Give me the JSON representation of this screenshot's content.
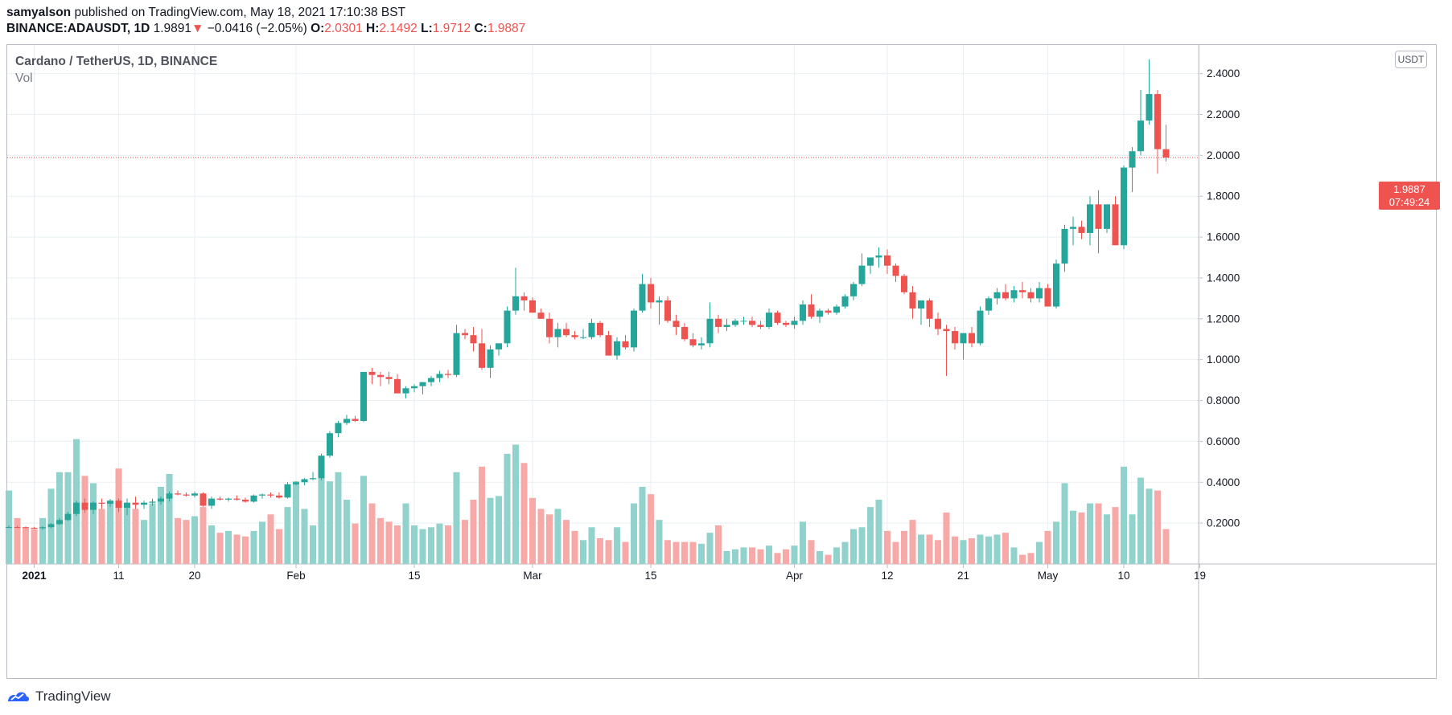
{
  "header": {
    "author": "samyalson",
    "published_text": "published on TradingView.com, May 18, 2021 17:10:38 BST",
    "symbol": "BINANCE:ADAUSDT, 1D",
    "last": "1.9891",
    "arrow": "▼",
    "change": "−0.0416 (−2.05%)",
    "o_label": "O:",
    "o_value": "2.0301",
    "h_label": "H:",
    "h_value": "2.1492",
    "l_label": "L:",
    "l_value": "1.9712",
    "c_label": "C:",
    "c_value": "1.9887"
  },
  "legend": {
    "title": "Cardano / TetherUS, 1D, BINANCE",
    "volume_label": "Vol"
  },
  "unit_badge": "USDT",
  "price_tag": {
    "price": "1.9887",
    "countdown": "07:49:24"
  },
  "footer": {
    "brand": "TradingView"
  },
  "colors": {
    "up": "#26a69a",
    "down": "#ef5350",
    "up_volume": "#92d2cc",
    "down_volume": "#f7a9a7",
    "grid": "#e9eff3"
  },
  "chart_data": {
    "type": "candlestick",
    "symbol": "BINANCE:ADAUSDT",
    "interval": "1D",
    "ylim": [
      0.0,
      2.54
    ],
    "y_ticks": [
      "2.4000",
      "2.2000",
      "2.0000",
      "1.8000",
      "1.6000",
      "1.4000",
      "1.2000",
      "1.0000",
      "0.8000",
      "0.6000",
      "0.4000",
      "0.2000"
    ],
    "y_tick_values": [
      2.4,
      2.2,
      2.0,
      1.8,
      1.6,
      1.4,
      1.2,
      1.0,
      0.8,
      0.6,
      0.4,
      0.2
    ],
    "x_ticks": [
      {
        "label": "2021",
        "index": 3,
        "bold": true
      },
      {
        "label": "11",
        "index": 13
      },
      {
        "label": "20",
        "index": 22
      },
      {
        "label": "Feb",
        "index": 34
      },
      {
        "label": "15",
        "index": 48
      },
      {
        "label": "Mar",
        "index": 62
      },
      {
        "label": "15",
        "index": 76
      },
      {
        "label": "Apr",
        "index": 93
      },
      {
        "label": "12",
        "index": 104
      },
      {
        "label": "21",
        "index": 113
      },
      {
        "label": "May",
        "index": 123
      },
      {
        "label": "10",
        "index": 132
      },
      {
        "label": "19",
        "index": 141
      }
    ],
    "candles": [
      [
        0.178,
        0.188,
        0.175,
        0.181,
        0.4
      ],
      [
        0.181,
        0.186,
        0.176,
        0.18,
        0.25
      ],
      [
        0.18,
        0.184,
        0.174,
        0.177,
        0.2
      ],
      [
        0.177,
        0.182,
        0.172,
        0.175,
        0.19
      ],
      [
        0.175,
        0.185,
        0.168,
        0.18,
        0.25
      ],
      [
        0.18,
        0.2,
        0.175,
        0.195,
        0.41
      ],
      [
        0.195,
        0.225,
        0.19,
        0.215,
        0.5
      ],
      [
        0.215,
        0.255,
        0.21,
        0.245,
        0.5
      ],
      [
        0.245,
        0.31,
        0.235,
        0.3,
        0.68
      ],
      [
        0.3,
        0.32,
        0.25,
        0.265,
        0.48
      ],
      [
        0.265,
        0.305,
        0.245,
        0.3,
        0.44
      ],
      [
        0.3,
        0.32,
        0.27,
        0.295,
        0.3
      ],
      [
        0.295,
        0.318,
        0.28,
        0.31,
        0.33
      ],
      [
        0.31,
        0.32,
        0.255,
        0.275,
        0.52
      ],
      [
        0.275,
        0.32,
        0.24,
        0.3,
        0.33
      ],
      [
        0.3,
        0.33,
        0.27,
        0.29,
        0.3
      ],
      [
        0.29,
        0.31,
        0.27,
        0.3,
        0.24
      ],
      [
        0.3,
        0.32,
        0.285,
        0.305,
        0.33
      ],
      [
        0.305,
        0.33,
        0.29,
        0.32,
        0.42
      ],
      [
        0.32,
        0.355,
        0.305,
        0.345,
        0.49
      ],
      [
        0.345,
        0.36,
        0.335,
        0.34,
        0.25
      ],
      [
        0.34,
        0.35,
        0.33,
        0.335,
        0.24
      ],
      [
        0.335,
        0.355,
        0.325,
        0.345,
        0.26
      ],
      [
        0.345,
        0.35,
        0.28,
        0.285,
        0.31
      ],
      [
        0.285,
        0.33,
        0.27,
        0.32,
        0.21
      ],
      [
        0.32,
        0.33,
        0.31,
        0.315,
        0.17
      ],
      [
        0.315,
        0.325,
        0.305,
        0.32,
        0.18
      ],
      [
        0.32,
        0.335,
        0.31,
        0.315,
        0.16
      ],
      [
        0.315,
        0.325,
        0.3,
        0.305,
        0.15
      ],
      [
        0.305,
        0.34,
        0.3,
        0.335,
        0.18
      ],
      [
        0.335,
        0.345,
        0.32,
        0.34,
        0.23
      ],
      [
        0.34,
        0.35,
        0.325,
        0.335,
        0.27
      ],
      [
        0.335,
        0.35,
        0.32,
        0.325,
        0.19
      ],
      [
        0.325,
        0.4,
        0.32,
        0.39,
        0.31
      ],
      [
        0.39,
        0.405,
        0.385,
        0.4,
        0.45
      ],
      [
        0.4,
        0.42,
        0.385,
        0.415,
        0.3
      ],
      [
        0.415,
        0.45,
        0.41,
        0.42,
        0.21
      ],
      [
        0.42,
        0.54,
        0.41,
        0.53,
        0.5
      ],
      [
        0.53,
        0.65,
        0.52,
        0.64,
        0.45
      ],
      [
        0.64,
        0.7,
        0.62,
        0.69,
        0.5
      ],
      [
        0.69,
        0.73,
        0.68,
        0.71,
        0.35
      ],
      [
        0.71,
        0.725,
        0.695,
        0.7,
        0.22
      ],
      [
        0.7,
        0.94,
        0.695,
        0.94,
        0.48
      ],
      [
        0.94,
        0.96,
        0.88,
        0.925,
        0.33
      ],
      [
        0.925,
        0.94,
        0.87,
        0.915,
        0.25
      ],
      [
        0.915,
        0.94,
        0.88,
        0.905,
        0.23
      ],
      [
        0.905,
        0.93,
        0.86,
        0.835,
        0.21
      ],
      [
        0.835,
        0.87,
        0.81,
        0.86,
        0.33
      ],
      [
        0.86,
        0.88,
        0.84,
        0.87,
        0.21
      ],
      [
        0.87,
        0.89,
        0.83,
        0.89,
        0.19
      ],
      [
        0.89,
        0.92,
        0.87,
        0.91,
        0.2
      ],
      [
        0.91,
        0.945,
        0.89,
        0.93,
        0.22
      ],
      [
        0.93,
        0.95,
        0.91,
        0.925,
        0.21
      ],
      [
        0.925,
        1.17,
        0.915,
        1.13,
        0.5
      ],
      [
        1.13,
        1.15,
        1.1,
        1.12,
        0.24
      ],
      [
        1.12,
        1.16,
        1.04,
        1.08,
        0.35
      ],
      [
        1.08,
        1.15,
        0.95,
        0.96,
        0.53
      ],
      [
        0.96,
        1.07,
        0.91,
        1.05,
        0.36
      ],
      [
        1.05,
        1.08,
        1.02,
        1.08,
        0.37
      ],
      [
        1.08,
        1.26,
        1.06,
        1.24,
        0.6
      ],
      [
        1.24,
        1.45,
        1.22,
        1.31,
        0.65
      ],
      [
        1.31,
        1.33,
        1.24,
        1.29,
        0.55
      ],
      [
        1.29,
        1.305,
        1.23,
        1.23,
        0.36
      ],
      [
        1.23,
        1.25,
        1.2,
        1.2,
        0.3
      ],
      [
        1.2,
        1.23,
        1.08,
        1.11,
        0.27
      ],
      [
        1.11,
        1.18,
        1.06,
        1.15,
        0.3
      ],
      [
        1.15,
        1.18,
        1.11,
        1.12,
        0.24
      ],
      [
        1.12,
        1.14,
        1.1,
        1.11,
        0.18
      ],
      [
        1.11,
        1.15,
        1.1,
        1.11,
        0.13
      ],
      [
        1.11,
        1.2,
        1.1,
        1.18,
        0.2
      ],
      [
        1.18,
        1.19,
        1.11,
        1.12,
        0.14
      ],
      [
        1.12,
        1.14,
        1.02,
        1.02,
        0.13
      ],
      [
        1.02,
        1.11,
        1.0,
        1.09,
        0.2
      ],
      [
        1.09,
        1.12,
        1.05,
        1.06,
        0.12
      ],
      [
        1.06,
        1.25,
        1.04,
        1.24,
        0.33
      ],
      [
        1.24,
        1.42,
        1.23,
        1.37,
        0.42
      ],
      [
        1.37,
        1.4,
        1.25,
        1.28,
        0.38
      ],
      [
        1.28,
        1.31,
        1.17,
        1.29,
        0.24
      ],
      [
        1.29,
        1.31,
        1.18,
        1.19,
        0.13
      ],
      [
        1.19,
        1.22,
        1.12,
        1.16,
        0.12
      ],
      [
        1.16,
        1.18,
        1.09,
        1.1,
        0.12
      ],
      [
        1.1,
        1.13,
        1.06,
        1.07,
        0.12
      ],
      [
        1.07,
        1.11,
        1.05,
        1.08,
        0.11
      ],
      [
        1.08,
        1.28,
        1.06,
        1.2,
        0.17
      ],
      [
        1.2,
        1.22,
        1.13,
        1.16,
        0.21
      ],
      [
        1.16,
        1.2,
        1.14,
        1.17,
        0.07
      ],
      [
        1.17,
        1.2,
        1.16,
        1.19,
        0.08
      ],
      [
        1.19,
        1.21,
        1.17,
        1.19,
        0.09
      ],
      [
        1.19,
        1.21,
        1.16,
        1.17,
        0.09
      ],
      [
        1.17,
        1.19,
        1.15,
        1.16,
        0.08
      ],
      [
        1.16,
        1.25,
        1.15,
        1.23,
        0.1
      ],
      [
        1.23,
        1.24,
        1.17,
        1.18,
        0.06
      ],
      [
        1.18,
        1.19,
        1.16,
        1.17,
        0.08
      ],
      [
        1.17,
        1.21,
        1.15,
        1.19,
        0.1
      ],
      [
        1.19,
        1.29,
        1.17,
        1.27,
        0.23
      ],
      [
        1.27,
        1.32,
        1.2,
        1.21,
        0.13
      ],
      [
        1.21,
        1.25,
        1.18,
        1.24,
        0.07
      ],
      [
        1.24,
        1.25,
        1.22,
        1.23,
        0.05
      ],
      [
        1.23,
        1.27,
        1.22,
        1.26,
        0.09
      ],
      [
        1.26,
        1.32,
        1.25,
        1.31,
        0.12
      ],
      [
        1.31,
        1.38,
        1.29,
        1.37,
        0.19
      ],
      [
        1.37,
        1.52,
        1.36,
        1.46,
        0.2
      ],
      [
        1.46,
        1.49,
        1.42,
        1.5,
        0.31
      ],
      [
        1.5,
        1.55,
        1.45,
        1.51,
        0.35
      ],
      [
        1.51,
        1.54,
        1.42,
        1.46,
        0.18
      ],
      [
        1.46,
        1.47,
        1.38,
        1.41,
        0.12
      ],
      [
        1.41,
        1.42,
        1.32,
        1.33,
        0.18
      ],
      [
        1.33,
        1.36,
        1.2,
        1.25,
        0.24
      ],
      [
        1.25,
        1.29,
        1.17,
        1.29,
        0.16
      ],
      [
        1.29,
        1.3,
        1.16,
        1.2,
        0.16
      ],
      [
        1.2,
        1.23,
        1.12,
        1.15,
        0.13
      ],
      [
        1.15,
        1.17,
        0.92,
        1.14,
        0.28
      ],
      [
        1.14,
        1.16,
        1.05,
        1.08,
        0.15
      ],
      [
        1.08,
        1.13,
        1.0,
        1.13,
        0.13
      ],
      [
        1.13,
        1.16,
        1.06,
        1.08,
        0.14
      ],
      [
        1.08,
        1.26,
        1.07,
        1.24,
        0.16
      ],
      [
        1.24,
        1.31,
        1.22,
        1.3,
        0.15
      ],
      [
        1.3,
        1.35,
        1.27,
        1.33,
        0.16
      ],
      [
        1.33,
        1.37,
        1.29,
        1.3,
        0.17
      ],
      [
        1.3,
        1.36,
        1.28,
        1.34,
        0.09
      ],
      [
        1.34,
        1.38,
        1.3,
        1.33,
        0.05
      ],
      [
        1.33,
        1.35,
        1.28,
        1.3,
        0.06
      ],
      [
        1.3,
        1.38,
        1.28,
        1.35,
        0.12
      ],
      [
        1.35,
        1.37,
        1.26,
        1.26,
        0.18
      ],
      [
        1.26,
        1.49,
        1.25,
        1.47,
        0.23
      ],
      [
        1.47,
        1.66,
        1.43,
        1.64,
        0.44
      ],
      [
        1.64,
        1.7,
        1.56,
        1.65,
        0.29
      ],
      [
        1.65,
        1.68,
        1.59,
        1.62,
        0.28
      ],
      [
        1.62,
        1.8,
        1.56,
        1.76,
        0.33
      ],
      [
        1.76,
        1.83,
        1.52,
        1.64,
        0.33
      ],
      [
        1.64,
        1.76,
        1.62,
        1.76,
        0.27
      ],
      [
        1.76,
        1.8,
        1.56,
        1.56,
        0.31
      ],
      [
        1.56,
        1.95,
        1.54,
        1.94,
        0.53
      ],
      [
        1.94,
        2.04,
        1.82,
        2.02,
        0.27
      ],
      [
        2.02,
        2.32,
        2.0,
        2.17,
        0.47
      ],
      [
        2.17,
        2.47,
        2.15,
        2.3,
        0.41
      ],
      [
        2.3,
        2.32,
        1.91,
        2.03,
        0.4
      ],
      [
        2.03,
        2.15,
        1.97,
        1.989,
        0.19
      ]
    ],
    "last_price": 1.9887
  }
}
